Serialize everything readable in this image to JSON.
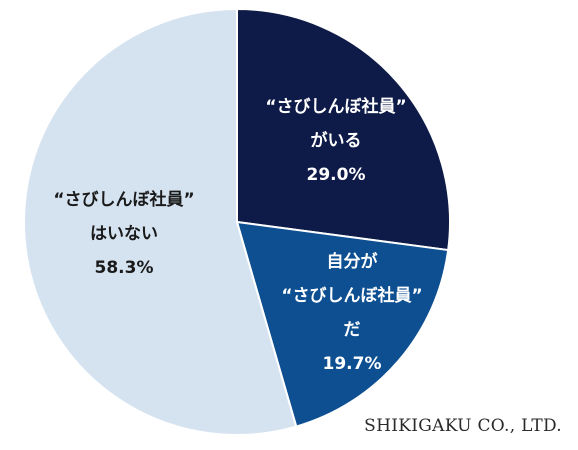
{
  "chart_data": {
    "type": "pie",
    "title": "",
    "slices": [
      {
        "value": 29.0,
        "label_lines": [
          "“さびしんぼ社員”",
          "がいる",
          "29.0%"
        ],
        "color": "#0e1a47",
        "text_color": "#ffffff"
      },
      {
        "value": 19.7,
        "label_lines": [
          "自分が",
          "“さびしんぼ社員”",
          "だ",
          "19.7%"
        ],
        "color": "#0d4f91",
        "text_color": "#ffffff"
      },
      {
        "value": 58.3,
        "label_lines": [
          "“さびしんぼ社員”",
          "はいない",
          "58.3%"
        ],
        "color": "#d5e3f1",
        "text_color": "#1a1a1a"
      }
    ]
  },
  "credit": "SHIKIGAKU CO., LTD."
}
